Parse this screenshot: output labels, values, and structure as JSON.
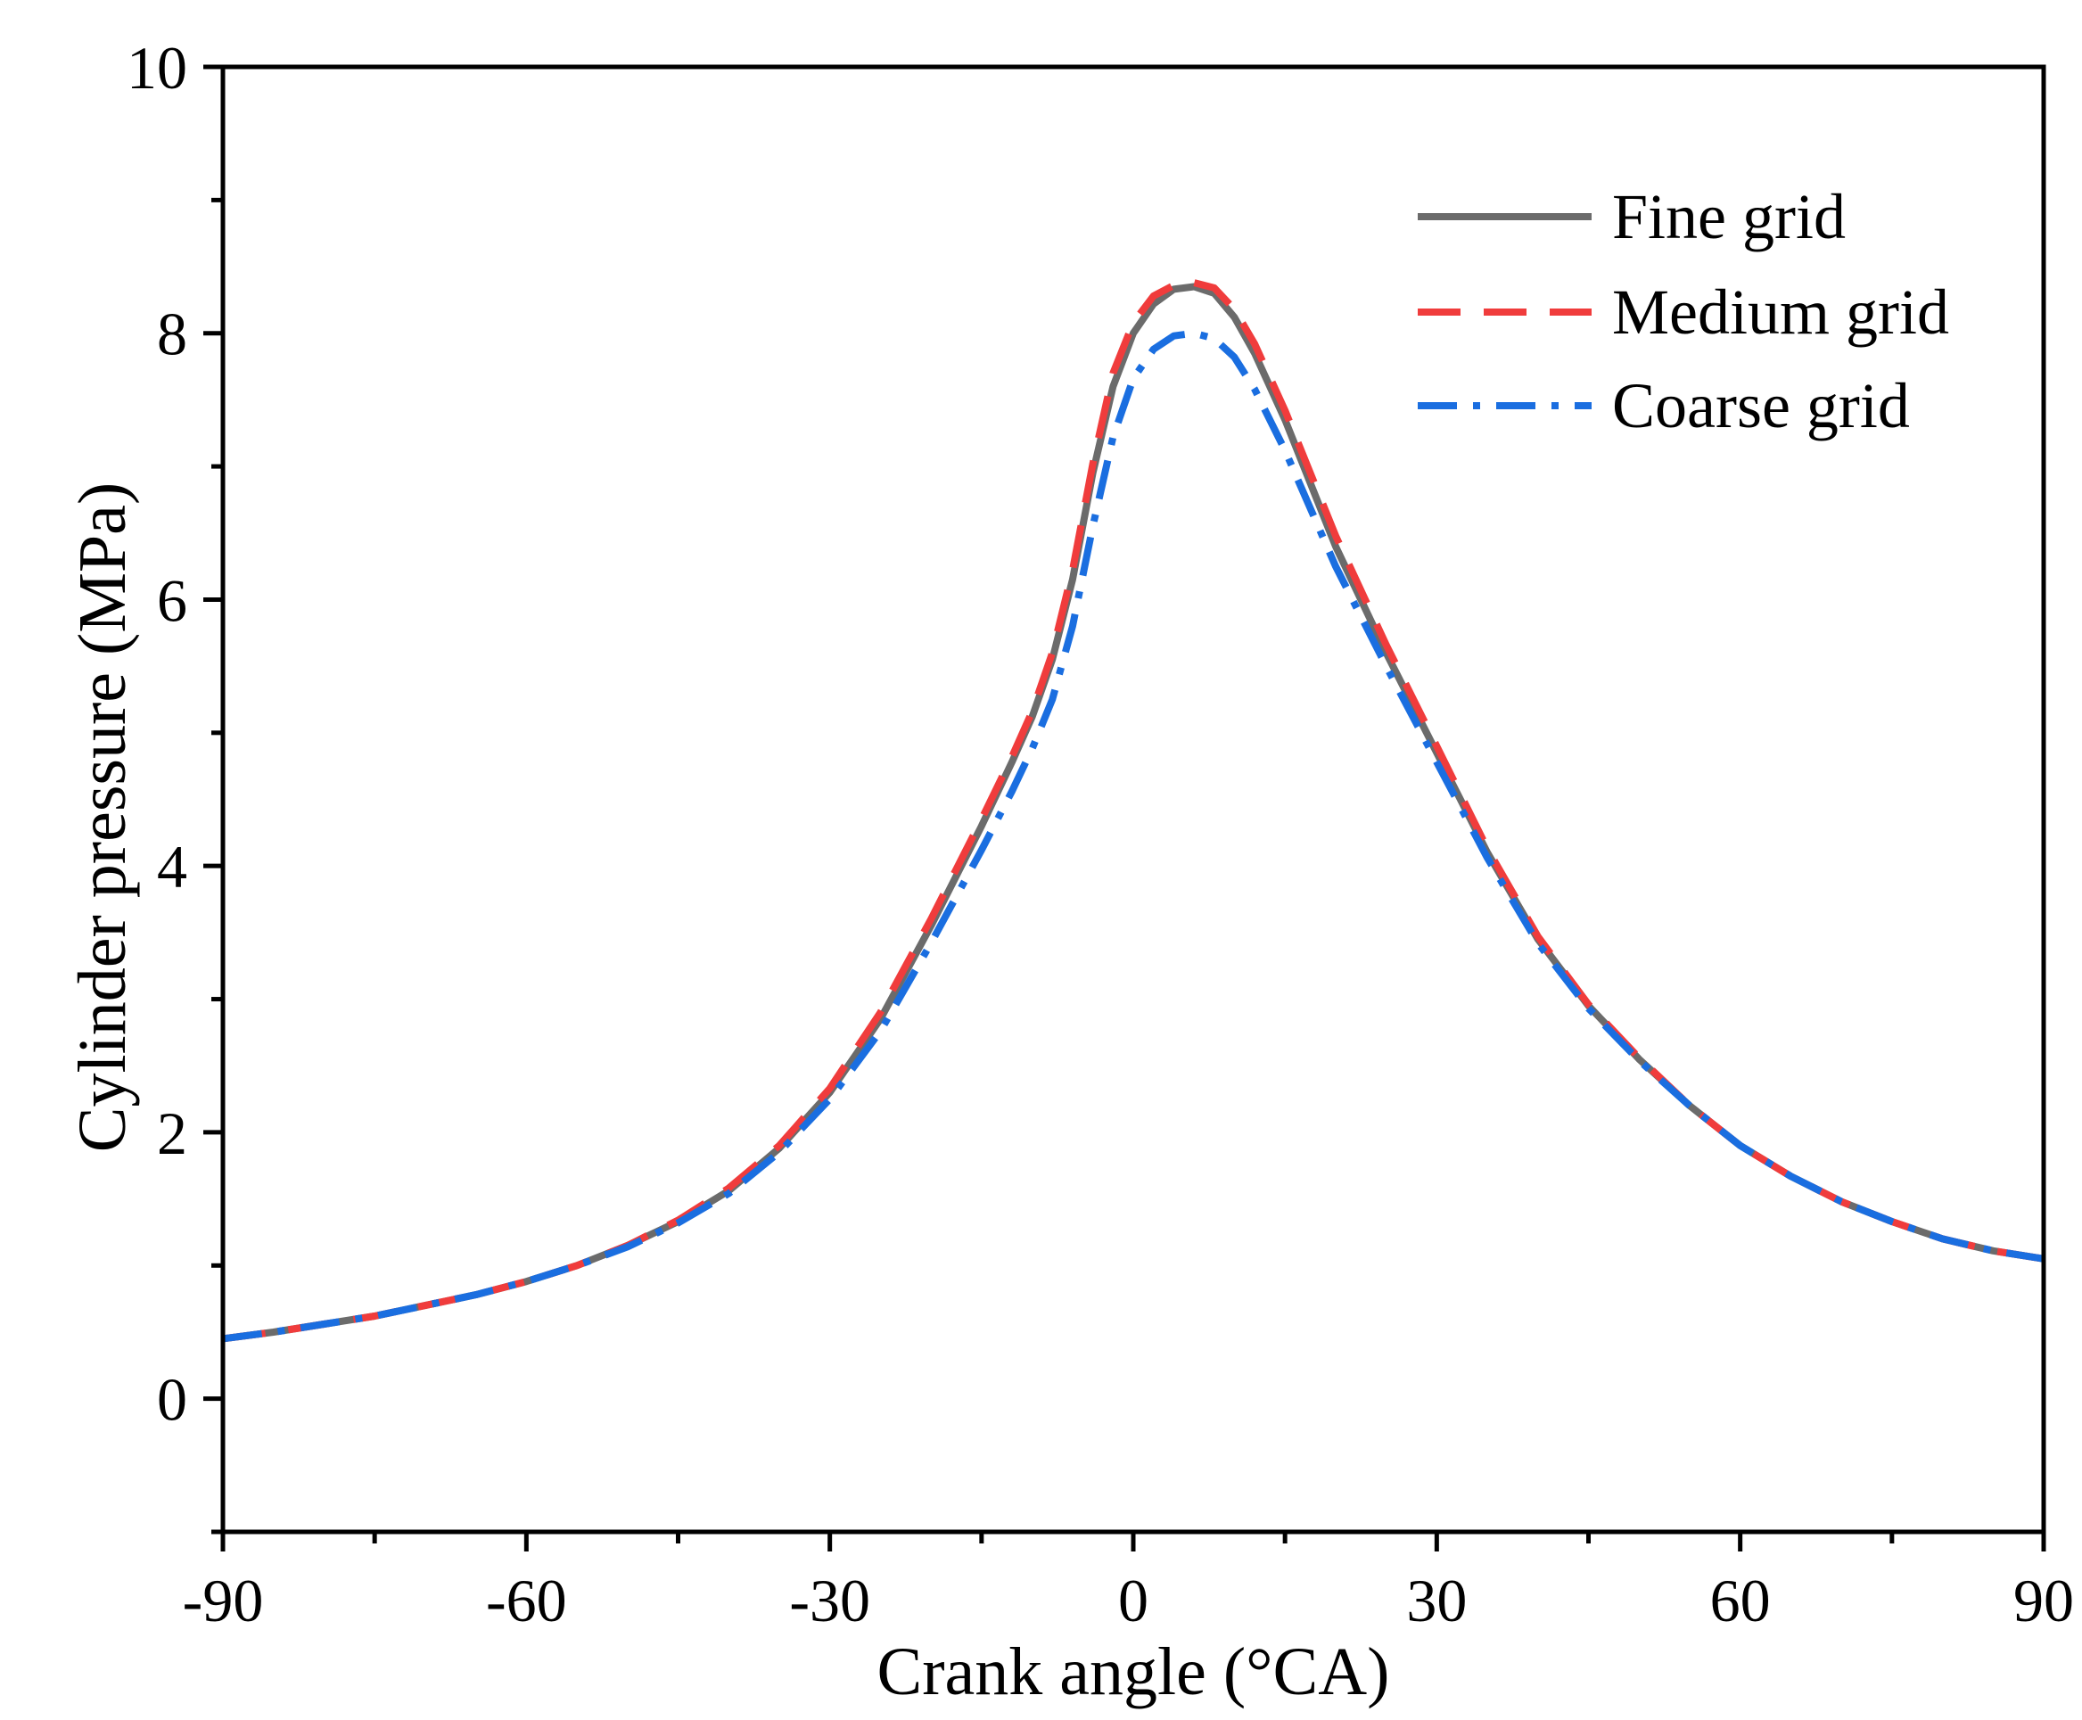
{
  "chart_data": {
    "type": "line",
    "title": "",
    "xlabel": "Crank angle (°CA)",
    "ylabel": "Cylinder pressure (MPa)",
    "xlim": [
      -90,
      90
    ],
    "ylim": [
      -1,
      10
    ],
    "xticks": [
      -90,
      -60,
      -30,
      0,
      30,
      60,
      90
    ],
    "xtick_labels": [
      "-90",
      "-60",
      "-30",
      "0",
      "30",
      "60",
      "90"
    ],
    "yticks": [
      0,
      2,
      4,
      6,
      8,
      10
    ],
    "ytick_labels": [
      "0",
      "2",
      "4",
      "6",
      "8",
      "10"
    ],
    "grid": false,
    "legend_position": "top-right",
    "x": [
      -90,
      -85,
      -80,
      -75,
      -70,
      -65,
      -60,
      -55,
      -50,
      -45,
      -40,
      -35,
      -30,
      -25,
      -20,
      -15,
      -12,
      -10,
      -8,
      -6,
      -4,
      -2,
      0,
      2,
      4,
      6,
      8,
      10,
      12,
      15,
      20,
      25,
      30,
      35,
      40,
      45,
      50,
      55,
      60,
      65,
      70,
      75,
      80,
      85,
      90
    ],
    "series": [
      {
        "name": "Fine grid",
        "color": "#6b6b6b",
        "dash": "solid",
        "values": [
          0.45,
          0.5,
          0.56,
          0.62,
          0.7,
          0.78,
          0.88,
          1.0,
          1.15,
          1.33,
          1.56,
          1.88,
          2.3,
          2.85,
          3.55,
          4.3,
          4.78,
          5.12,
          5.55,
          6.15,
          6.95,
          7.6,
          8.0,
          8.22,
          8.33,
          8.35,
          8.3,
          8.12,
          7.85,
          7.35,
          6.4,
          5.6,
          4.85,
          4.1,
          3.45,
          2.95,
          2.55,
          2.2,
          1.9,
          1.67,
          1.48,
          1.33,
          1.2,
          1.11,
          1.05
        ]
      },
      {
        "name": "Medium grid",
        "color": "#f03c3c",
        "dash": "dashed",
        "values": [
          0.45,
          0.5,
          0.56,
          0.62,
          0.7,
          0.78,
          0.88,
          1.0,
          1.15,
          1.34,
          1.58,
          1.9,
          2.33,
          2.9,
          3.6,
          4.35,
          4.82,
          5.16,
          5.6,
          6.22,
          7.02,
          7.7,
          8.08,
          8.28,
          8.36,
          8.38,
          8.34,
          8.18,
          7.92,
          7.42,
          6.48,
          5.66,
          4.9,
          4.13,
          3.47,
          2.96,
          2.56,
          2.2,
          1.9,
          1.67,
          1.48,
          1.33,
          1.2,
          1.11,
          1.05
        ]
      },
      {
        "name": "Coarse grid",
        "color": "#1a6ee0",
        "dash": "dashdot",
        "values": [
          0.45,
          0.5,
          0.56,
          0.62,
          0.7,
          0.78,
          0.88,
          1.0,
          1.14,
          1.32,
          1.54,
          1.85,
          2.25,
          2.76,
          3.42,
          4.12,
          4.56,
          4.88,
          5.25,
          5.8,
          6.55,
          7.22,
          7.66,
          7.88,
          7.98,
          8.0,
          7.96,
          7.82,
          7.58,
          7.12,
          6.25,
          5.5,
          4.78,
          4.06,
          3.42,
          2.93,
          2.54,
          2.2,
          1.9,
          1.67,
          1.48,
          1.33,
          1.2,
          1.11,
          1.05
        ]
      }
    ]
  }
}
